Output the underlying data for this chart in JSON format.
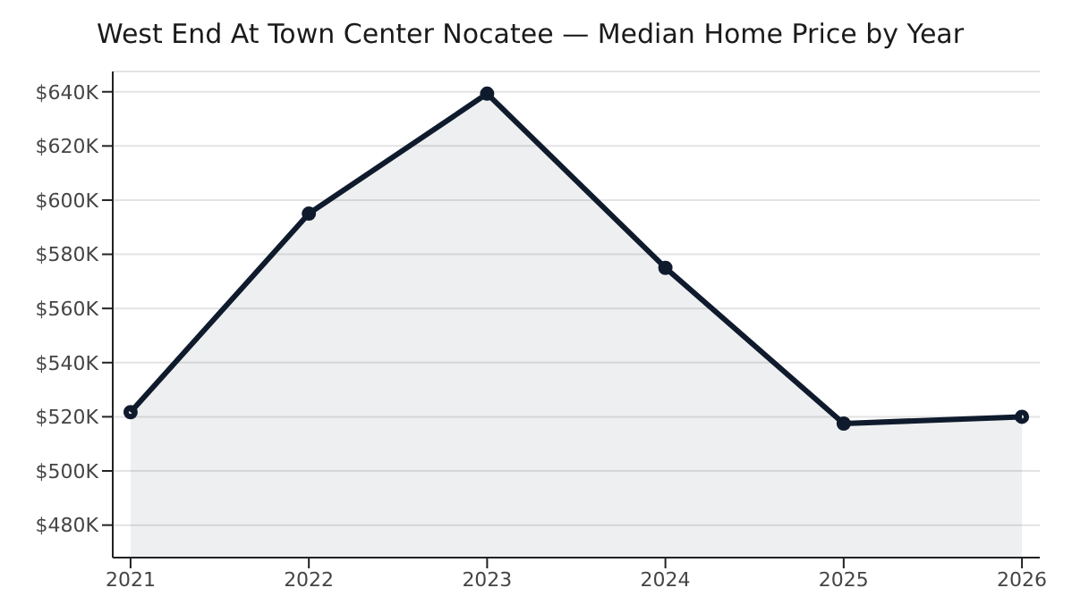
{
  "chart_data": {
    "type": "area",
    "title": "West End At Town Center Nocatee — Median Home Price by Year",
    "x": [
      2021,
      2022,
      2023,
      2024,
      2025,
      2026
    ],
    "series": [
      {
        "color": "#0f1b2d",
        "values": [
          521700,
          595000,
          639300,
          575000,
          517500,
          520000
        ]
      }
    ],
    "xlim": [
      2020.9,
      2026.1
    ],
    "xticks": [
      2021,
      2022,
      2023,
      2024,
      2025,
      2026
    ],
    "ylim": [
      468000,
      647500
    ],
    "yticks": [
      {
        "value": 480000,
        "label": "$480K"
      },
      {
        "value": 500000,
        "label": "$500K"
      },
      {
        "value": 520000,
        "label": "$520K"
      },
      {
        "value": 540000,
        "label": "$540K"
      },
      {
        "value": 560000,
        "label": "$560K"
      },
      {
        "value": 580000,
        "label": "$580K"
      },
      {
        "value": 600000,
        "label": "$600K"
      },
      {
        "value": 620000,
        "label": "$620K"
      },
      {
        "value": 640000,
        "label": "$640K"
      }
    ],
    "grid": "y",
    "marker": "circle",
    "legend": false
  }
}
